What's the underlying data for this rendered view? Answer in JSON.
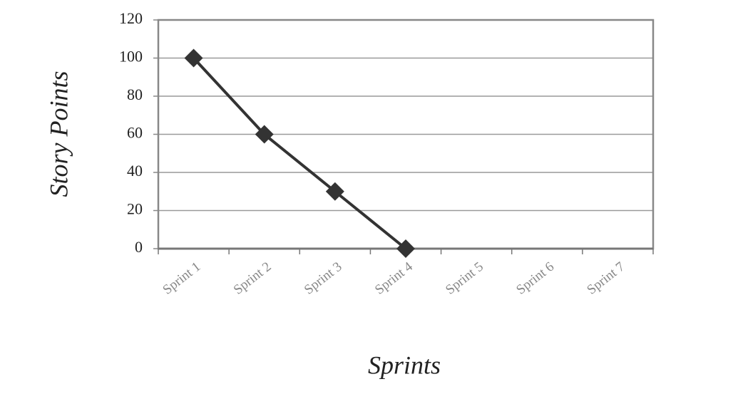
{
  "chart_data": {
    "type": "line",
    "xlabel": "Sprints",
    "ylabel": "Story Points",
    "categories": [
      "Sprint 1",
      "Sprint 2",
      "Sprint 3",
      "Sprint 4",
      "Sprint 5",
      "Sprint 6",
      "Sprint 7"
    ],
    "values": [
      100,
      60,
      30,
      0,
      null,
      null,
      null
    ],
    "color": "#333333",
    "ylim": [
      0,
      120
    ],
    "yticks": [
      0,
      20,
      40,
      60,
      80,
      100,
      120
    ],
    "grid": true
  }
}
